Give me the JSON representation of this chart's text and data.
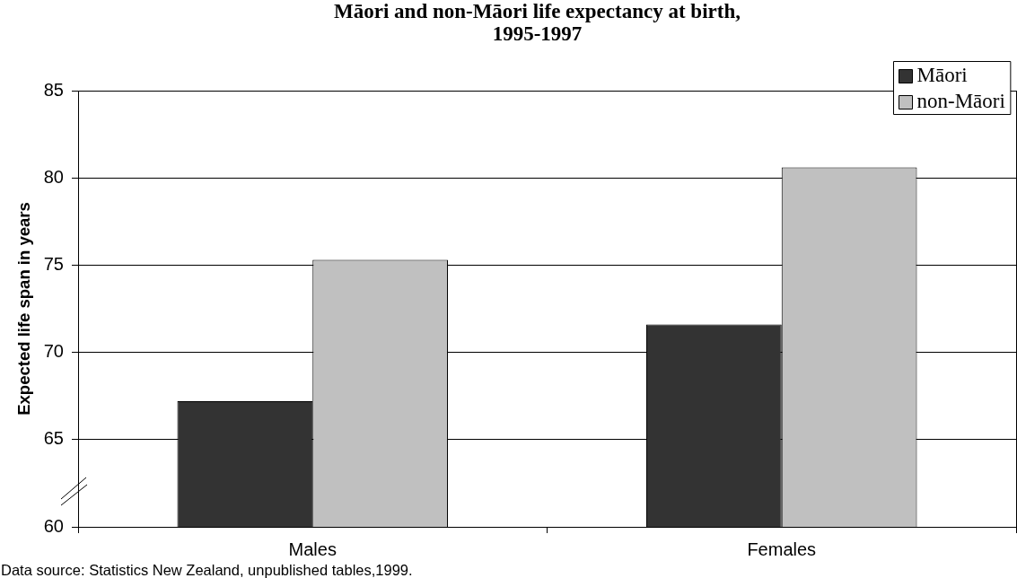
{
  "chart_data": {
    "type": "bar",
    "title": "Māori and non-Māori life expectancy at birth, 1995-1997",
    "ylabel": "Expected life span in years",
    "categories": [
      "Males",
      "Females"
    ],
    "series": [
      {
        "name": "Māori",
        "color": "#333333",
        "values": [
          67.2,
          71.6
        ]
      },
      {
        "name": "non-Māori",
        "color": "#c0c0c0",
        "values": [
          75.3,
          80.6
        ]
      }
    ],
    "ylim": [
      60,
      85
    ],
    "yticks": [
      60,
      65,
      70,
      75,
      80,
      85
    ],
    "grid": "y",
    "legend": "top right",
    "annotations": [
      "Data source: Statistics New Zealand, unpublished tables,1999."
    ]
  }
}
